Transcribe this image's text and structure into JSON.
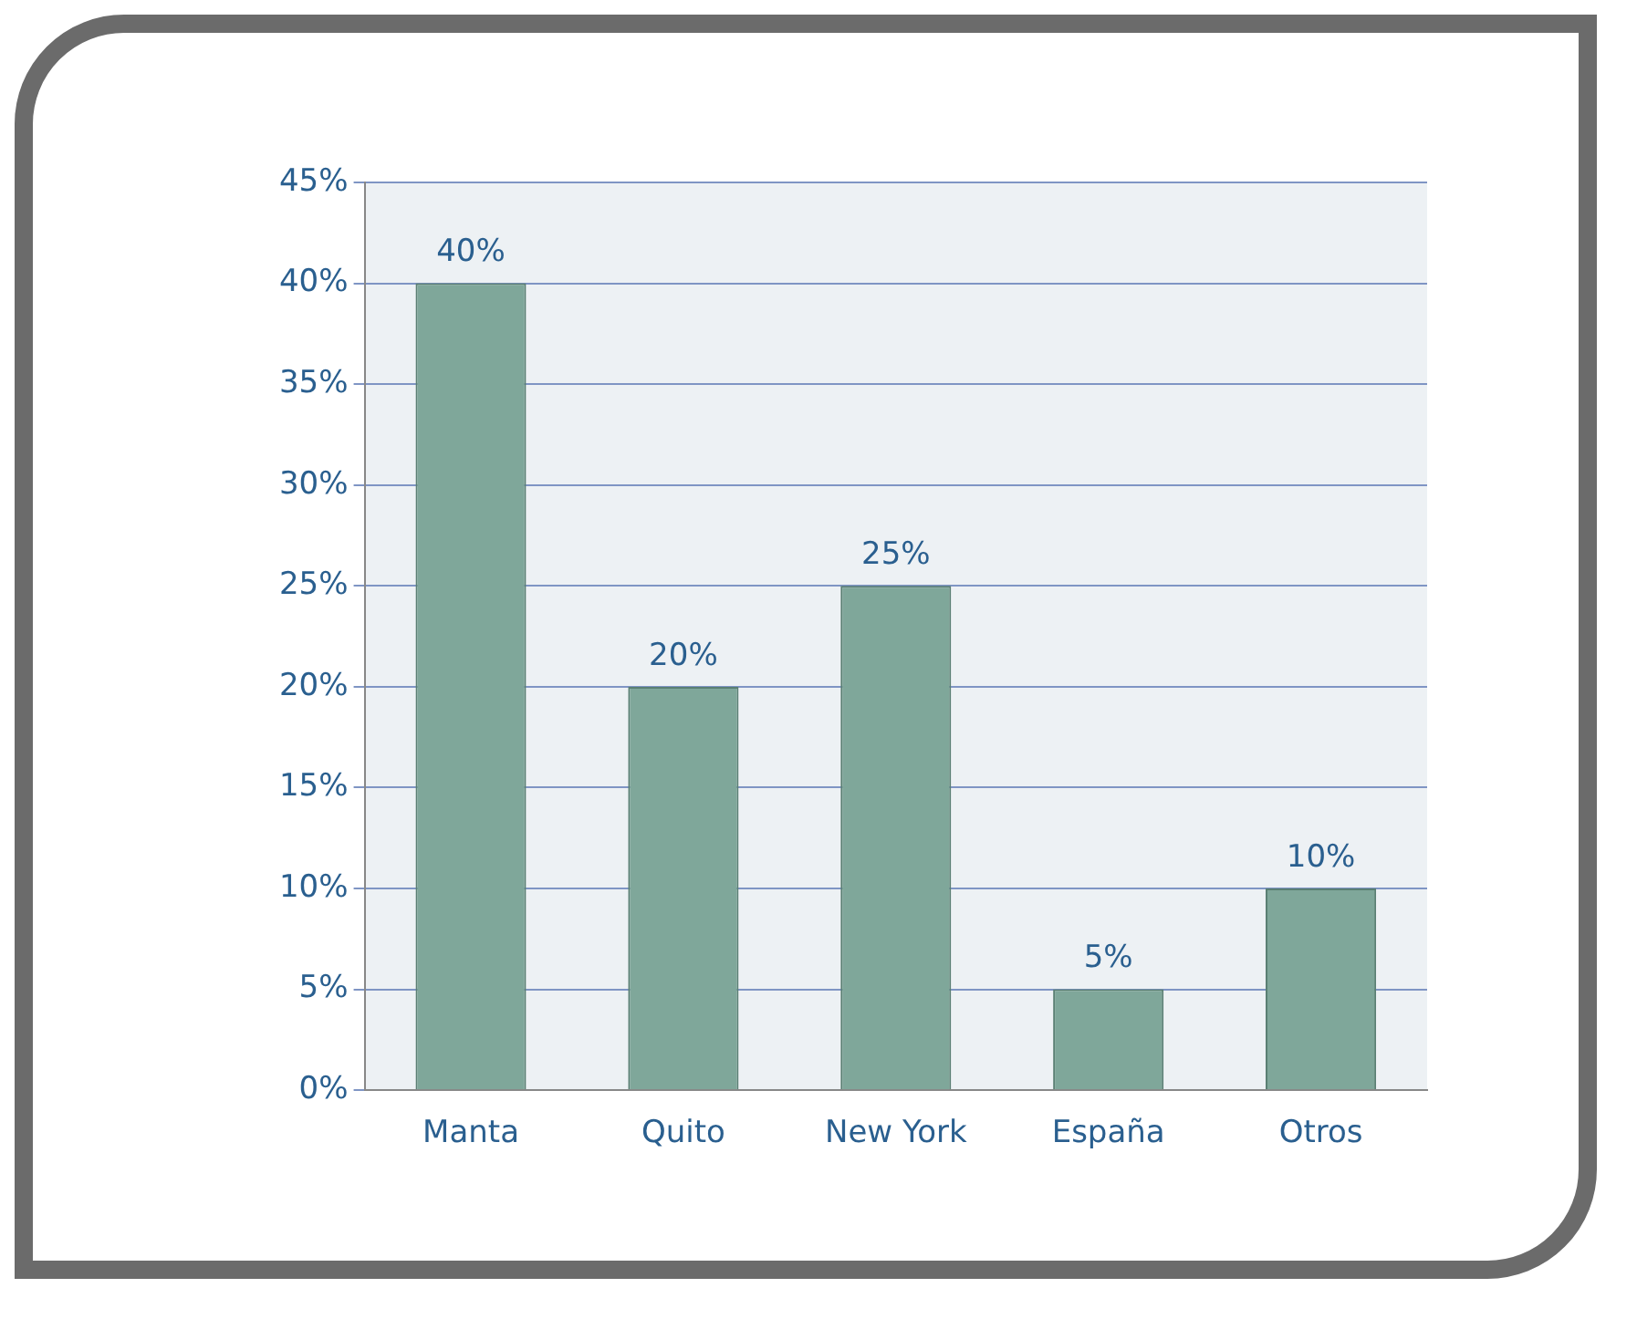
{
  "chart_data": {
    "type": "bar",
    "categories": [
      "Manta",
      "Quito",
      "New York",
      "España",
      "Otros"
    ],
    "values": [
      40,
      20,
      25,
      5,
      10
    ],
    "color": "#7fa79a",
    "value_labels": [
      "40%",
      "20%",
      "25%",
      "5%",
      "10%"
    ],
    "ylim": [
      0,
      45
    ],
    "yticks": [
      {
        "value": 0,
        "label": "0%"
      },
      {
        "value": 5,
        "label": "5%"
      },
      {
        "value": 10,
        "label": "10%"
      },
      {
        "value": 15,
        "label": "15%"
      },
      {
        "value": 20,
        "label": "20%"
      },
      {
        "value": 25,
        "label": "25%"
      },
      {
        "value": 30,
        "label": "30%"
      },
      {
        "value": 35,
        "label": "35%"
      },
      {
        "value": 40,
        "label": "40%"
      },
      {
        "value": 45,
        "label": "45%"
      }
    ],
    "grid": "y",
    "legend": false
  }
}
